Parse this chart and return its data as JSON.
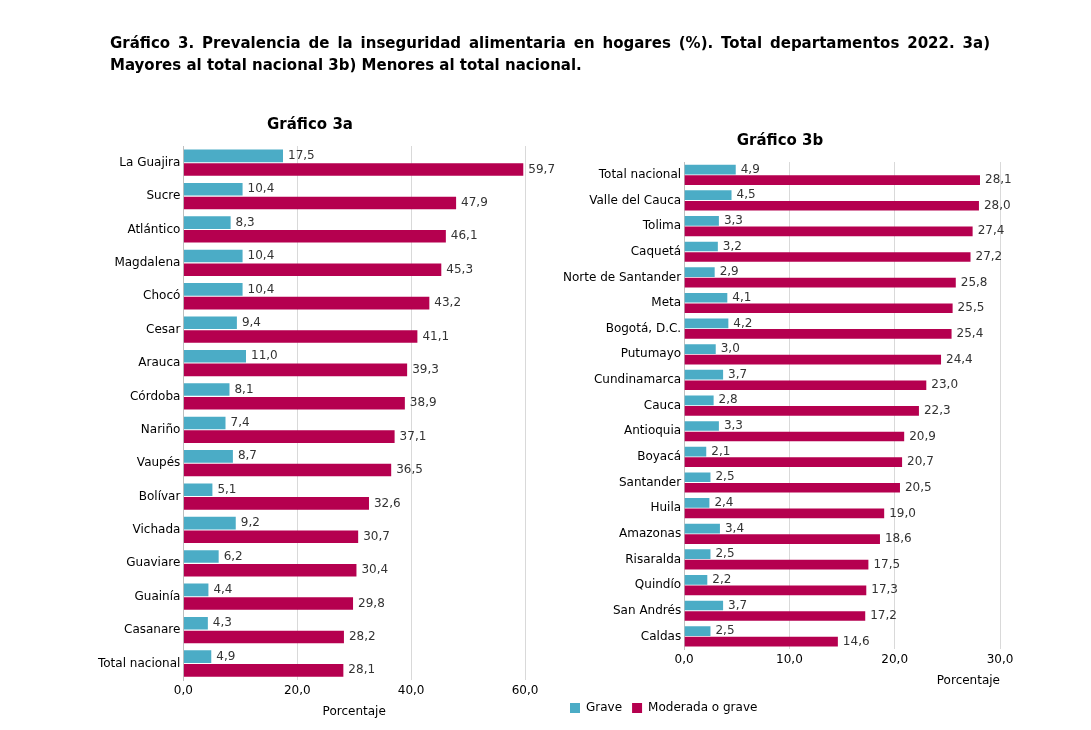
{
  "chart_data": [
    {
      "type": "other",
      "title": "Gráfico 3. Prevalencia de la inseguridad alimentaria en hogares (%). Total departamentos 2022. 3a) Mayores al total nacional 3b) Menores al total nacional."
    },
    {
      "type": "bar",
      "orientation": "horizontal",
      "title": "Gráfico 3a",
      "xlabel": "Porcentaje",
      "categories": [
        "La Guajira",
        "Sucre",
        "Atlántico",
        "Magdalena",
        "Chocó",
        "Cesar",
        "Arauca",
        "Córdoba",
        "Nariño",
        "Vaupés",
        "Bolívar",
        "Vichada",
        "Guaviare",
        "Guainía",
        "Casanare",
        "Total nacional"
      ],
      "series": [
        {
          "color": "#4bacc6",
          "values": [
            17.5,
            10.4,
            8.3,
            10.4,
            10.4,
            9.4,
            11.0,
            8.1,
            7.4,
            8.7,
            5.1,
            9.2,
            6.2,
            4.4,
            4.3,
            4.9
          ],
          "value_labels": [
            "17,5",
            "10,4",
            "8,3",
            "10,4",
            "10,4",
            "9,4",
            "11,0",
            "8,1",
            "7,4",
            "8,7",
            "5,1",
            "9,2",
            "6,2",
            "4,4",
            "4,3",
            "4,9"
          ]
        },
        {
          "color": "#b5004f",
          "values": [
            59.7,
            47.9,
            46.1,
            45.3,
            43.2,
            41.1,
            39.3,
            38.9,
            37.1,
            36.5,
            32.6,
            30.7,
            30.4,
            29.8,
            28.2,
            28.1
          ],
          "value_labels": [
            "59,7",
            "47,9",
            "46,1",
            "45,3",
            "43,2",
            "41,1",
            "39,3",
            "38,9",
            "37,1",
            "36,5",
            "32,6",
            "30,7",
            "30,4",
            "29,8",
            "28,2",
            "28,1"
          ]
        }
      ],
      "xlim": [
        0,
        60
      ],
      "xticks": [
        {
          "value": 0,
          "label": "0,0"
        },
        {
          "value": 20,
          "label": "20,0"
        },
        {
          "value": 40,
          "label": "40,0"
        },
        {
          "value": 60,
          "label": "60,0"
        }
      ],
      "grid": "x"
    },
    {
      "type": "bar",
      "orientation": "horizontal",
      "title": "Gráfico 3b",
      "xlabel": "Porcentaje",
      "categories": [
        "Total nacional",
        "Valle del Cauca",
        "Tolima",
        "Caquetá",
        "Norte de Santander",
        "Meta",
        "Bogotá, D.C.",
        "Putumayo",
        "Cundinamarca",
        "Cauca",
        "Antioquia",
        "Boyacá",
        "Santander",
        "Huila",
        "Amazonas",
        "Risaralda",
        "Quindío",
        "San Andrés",
        "Caldas"
      ],
      "series": [
        {
          "name": "Grave",
          "color": "#4bacc6",
          "values": [
            4.9,
            4.5,
            3.3,
            3.2,
            2.9,
            4.1,
            4.2,
            3.0,
            3.7,
            2.8,
            3.3,
            2.1,
            2.5,
            2.4,
            3.4,
            2.5,
            2.2,
            3.7,
            2.5
          ],
          "value_labels": [
            "4,9",
            "4,5",
            "3,3",
            "3,2",
            "2,9",
            "4,1",
            "4,2",
            "3,0",
            "3,7",
            "2,8",
            "3,3",
            "2,1",
            "2,5",
            "2,4",
            "3,4",
            "2,5",
            "2,2",
            "3,7",
            "2,5"
          ]
        },
        {
          "name": "Moderada o grave",
          "color": "#b5004f",
          "values": [
            28.1,
            28.0,
            27.4,
            27.2,
            25.8,
            25.5,
            25.4,
            24.4,
            23.0,
            22.3,
            20.9,
            20.7,
            20.5,
            19.0,
            18.6,
            17.5,
            17.3,
            17.2,
            14.6
          ],
          "value_labels": [
            "28,1",
            "28,0",
            "27,4",
            "27,2",
            "25,8",
            "25,5",
            "25,4",
            "24,4",
            "23,0",
            "22,3",
            "20,9",
            "20,7",
            "20,5",
            "19,0",
            "18,6",
            "17,5",
            "17,3",
            "17,2",
            "14,6"
          ]
        }
      ],
      "xlim": [
        0,
        30
      ],
      "xticks": [
        {
          "value": 0,
          "label": "0,0"
        },
        {
          "value": 10,
          "label": "10,0"
        },
        {
          "value": 20,
          "label": "20,0"
        },
        {
          "value": 30,
          "label": "30,0"
        }
      ],
      "grid": "x",
      "legend": "bottom"
    }
  ]
}
